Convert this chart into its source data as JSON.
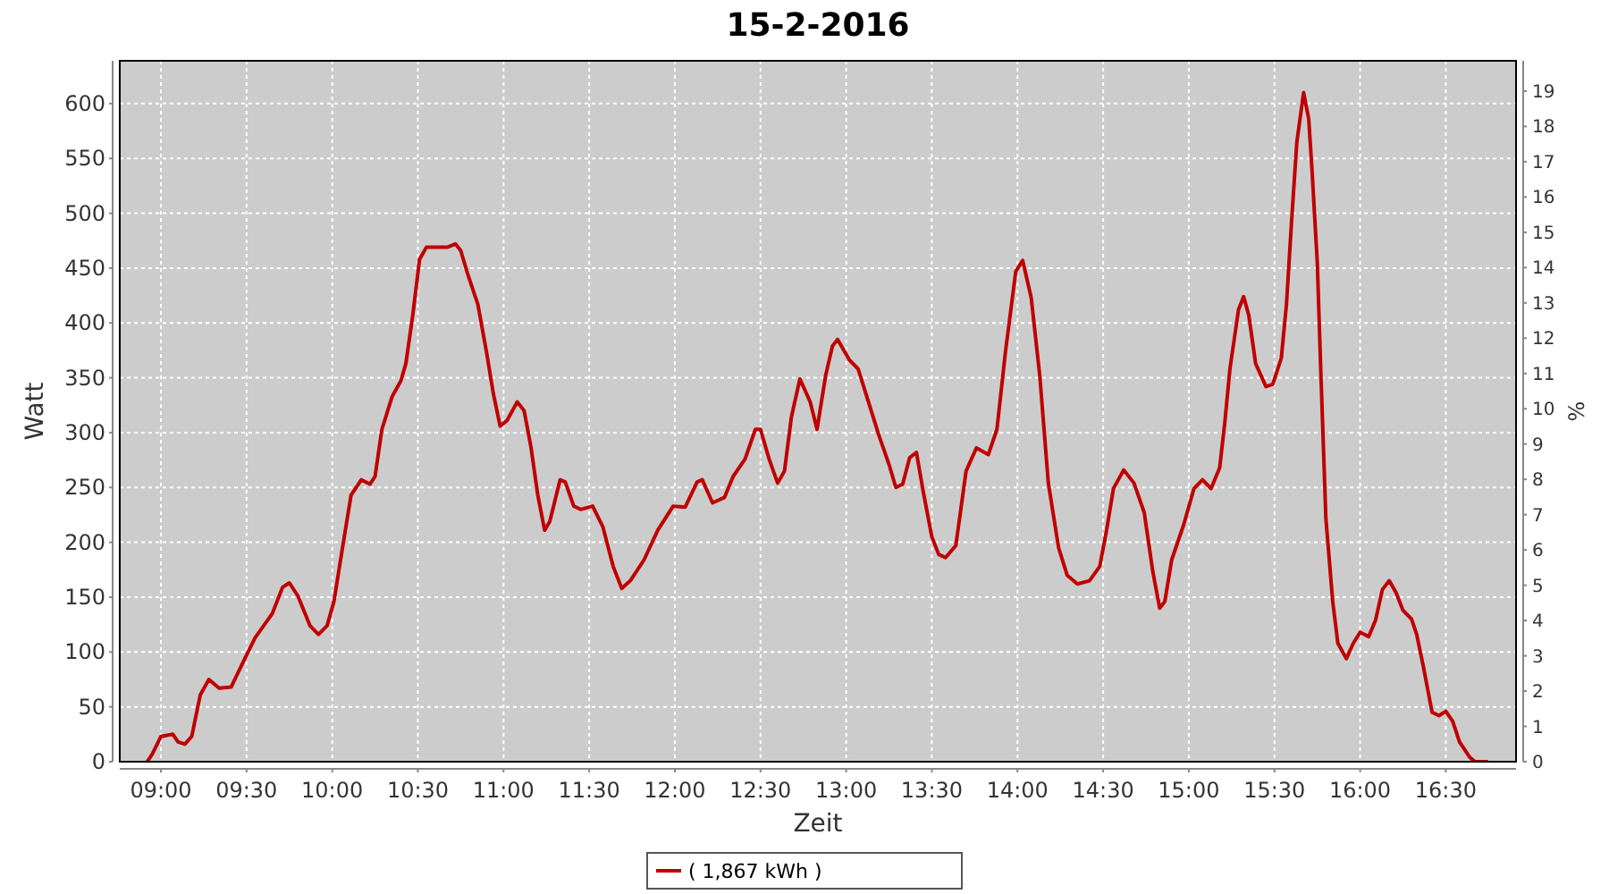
{
  "chart_data": {
    "type": "line",
    "title": "15-2-2016",
    "xlabel": "Zeit",
    "ylabel": "Watt",
    "y2label": "%",
    "xlim": [
      8.76,
      16.91
    ],
    "xticks": [
      {
        "value": 9,
        "label": "09:00"
      },
      {
        "value": 9.5,
        "label": "09:30"
      },
      {
        "value": 10,
        "label": "10:00"
      },
      {
        "value": 10.5,
        "label": "10:30"
      },
      {
        "value": 11,
        "label": "11:00"
      },
      {
        "value": 11.5,
        "label": "11:30"
      },
      {
        "value": 12,
        "label": "12:00"
      },
      {
        "value": 12.5,
        "label": "12:30"
      },
      {
        "value": 13,
        "label": "13:00"
      },
      {
        "value": 13.5,
        "label": "13:30"
      },
      {
        "value": 14,
        "label": "14:00"
      },
      {
        "value": 14.5,
        "label": "14:30"
      },
      {
        "value": 15,
        "label": "15:00"
      },
      {
        "value": 15.5,
        "label": "15:30"
      },
      {
        "value": 16,
        "label": "16:00"
      },
      {
        "value": 16.5,
        "label": "16:30"
      }
    ],
    "ylim": [
      0,
      639
    ],
    "yticks": [
      0,
      50,
      100,
      150,
      200,
      250,
      300,
      350,
      400,
      450,
      500,
      550,
      600
    ],
    "y2lim": [
      0,
      19.86
    ],
    "y2ticks": [
      0,
      1,
      2,
      3,
      4,
      5,
      6,
      7,
      8,
      9,
      10,
      11,
      12,
      13,
      14,
      15,
      16,
      17,
      18,
      19
    ],
    "grid": true,
    "legend": "bottom",
    "marker": "none",
    "line_style": "solid",
    "series": [
      {
        "name": "( 1,867 kWh )",
        "color": "#c00000",
        "x": [
          8.92,
          8.95,
          9.0,
          9.07,
          9.1,
          9.14,
          9.18,
          9.23,
          9.28,
          9.34,
          9.41,
          9.49,
          9.55,
          9.65,
          9.71,
          9.75,
          9.8,
          9.87,
          9.92,
          9.97,
          10.01,
          10.06,
          10.11,
          10.17,
          10.22,
          10.25,
          10.29,
          10.35,
          10.4,
          10.43,
          10.47,
          10.51,
          10.55,
          10.67,
          10.72,
          10.75,
          10.79,
          10.85,
          10.9,
          10.94,
          10.98,
          11.02,
          11.08,
          11.12,
          11.16,
          11.2,
          11.24,
          11.27,
          11.33,
          11.36,
          11.41,
          11.45,
          11.52,
          11.58,
          11.64,
          11.69,
          11.74,
          11.82,
          11.9,
          11.99,
          12.06,
          12.13,
          12.16,
          12.22,
          12.29,
          12.34,
          12.41,
          12.47,
          12.5,
          12.55,
          12.6,
          12.64,
          12.68,
          12.73,
          12.79,
          12.83,
          12.88,
          12.92,
          12.95,
          13.02,
          13.07,
          13.12,
          13.19,
          13.25,
          13.29,
          13.33,
          13.37,
          13.41,
          13.45,
          13.5,
          13.54,
          13.58,
          13.64,
          13.7,
          13.76,
          13.83,
          13.88,
          13.93,
          13.99,
          14.03,
          14.08,
          14.13,
          14.18,
          14.24,
          14.29,
          14.35,
          14.42,
          14.48,
          14.52,
          14.56,
          14.62,
          14.68,
          14.74,
          14.79,
          14.83,
          14.86,
          14.9,
          14.97,
          15.03,
          15.08,
          15.13,
          15.18,
          15.21,
          15.24,
          15.29,
          15.32,
          15.35,
          15.39,
          15.45,
          15.49,
          15.54,
          15.57,
          15.6,
          15.63,
          15.67,
          15.7,
          15.72,
          15.75,
          15.77,
          15.8,
          15.84,
          15.87,
          15.92,
          15.96,
          16.0,
          16.05,
          16.09,
          16.13,
          16.17,
          16.21,
          16.25,
          16.3,
          16.33,
          16.37,
          16.42,
          16.46,
          16.5,
          16.54,
          16.58,
          16.64,
          16.67,
          16.74
        ],
        "values": [
          0,
          7,
          23,
          25,
          18,
          16,
          23,
          61,
          75,
          67,
          68,
          94,
          113,
          135,
          159,
          163,
          151,
          124,
          116,
          124,
          146,
          195,
          243,
          257,
          253,
          260,
          303,
          333,
          347,
          363,
          407,
          458,
          469,
          469,
          472,
          466,
          445,
          417,
          374,
          336,
          306,
          311,
          328,
          320,
          287,
          243,
          211,
          219,
          257,
          255,
          233,
          230,
          233,
          214,
          178,
          158,
          165,
          184,
          211,
          233,
          232,
          255,
          257,
          236,
          241,
          260,
          276,
          303,
          303,
          276,
          254,
          265,
          314,
          349,
          328,
          303,
          352,
          379,
          385,
          366,
          358,
          333,
          298,
          271,
          250,
          253,
          277,
          282,
          246,
          205,
          189,
          186,
          197,
          265,
          286,
          280,
          303,
          374,
          447,
          457,
          423,
          352,
          254,
          195,
          170,
          162,
          165,
          178,
          211,
          249,
          266,
          254,
          227,
          173,
          140,
          146,
          184,
          216,
          249,
          257,
          249,
          268,
          309,
          358,
          412,
          424,
          407,
          363,
          342,
          344,
          368,
          417,
          493,
          564,
          610,
          586,
          537,
          455,
          358,
          222,
          146,
          108,
          94,
          108,
          118,
          114,
          129,
          157,
          165,
          154,
          138,
          130,
          116,
          86,
          45,
          42,
          46,
          37,
          18,
          4,
          0,
          0
        ]
      }
    ]
  }
}
